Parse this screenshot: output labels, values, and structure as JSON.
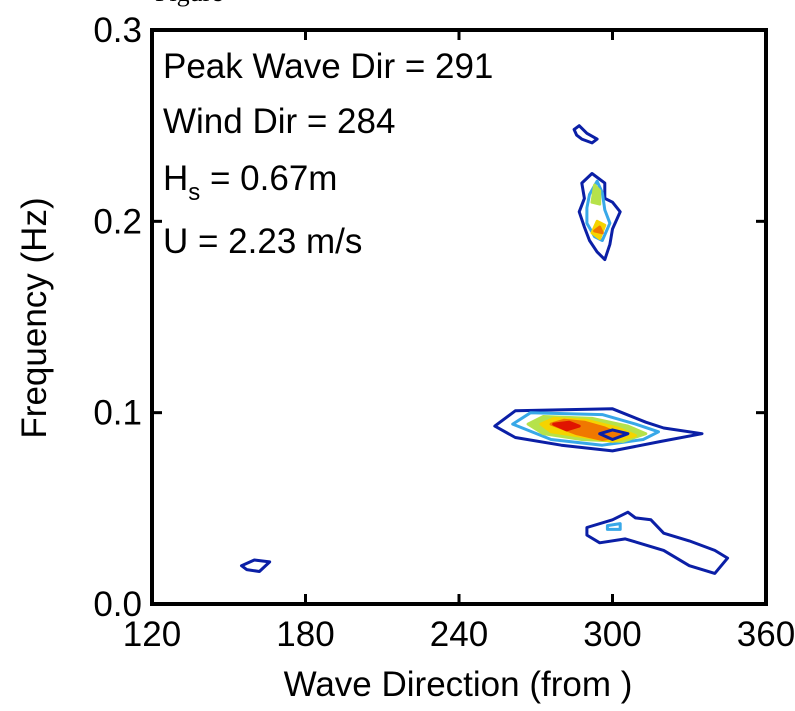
{
  "header_fragment": "Figure",
  "chart_data": {
    "type": "contour",
    "xlabel": "Wave Direction  (from )",
    "ylabel": "Frequency (Hz)",
    "xlim": [
      120,
      360
    ],
    "ylim": [
      0.0,
      0.3
    ],
    "x_ticks": [
      120,
      180,
      240,
      300,
      360
    ],
    "x_tick_labels": [
      "120",
      "180",
      "240",
      "300",
      "360"
    ],
    "y_ticks": [
      0.0,
      0.1,
      0.2,
      0.3
    ],
    "y_tick_labels": [
      "0.0",
      "0.1",
      "0.2",
      "0.3"
    ],
    "grid": false,
    "annotations": {
      "peak_wave_dir": "Peak Wave Dir = 291",
      "wind_dir": "Wind Dir = 284",
      "hs_prefix": "H",
      "hs_subscript": "s",
      "hs_value": " = 0.67m",
      "u": "U = 2.23 m/s"
    },
    "level_colors": [
      "#0b1fa6",
      "#38a8e8",
      "#b6e24a",
      "#f5d400",
      "#f07800",
      "#e01400"
    ],
    "features": [
      {
        "name": "swell-contour",
        "levels": [
          [
            [
              254,
              0.093
            ],
            [
              262,
              0.101
            ],
            [
              300,
              0.102
            ],
            [
              313,
              0.095
            ],
            [
              320,
              0.092
            ],
            [
              335,
              0.089
            ],
            [
              319,
              0.085
            ],
            [
              300,
              0.08
            ],
            [
              280,
              0.083
            ],
            [
              262,
              0.087
            ]
          ],
          [
            [
              261,
              0.094
            ],
            [
              268,
              0.1
            ],
            [
              296,
              0.099
            ],
            [
              309,
              0.094
            ],
            [
              318,
              0.09
            ],
            [
              312,
              0.086
            ],
            [
              296,
              0.083
            ],
            [
              276,
              0.086
            ]
          ],
          [
            [
              267,
              0.094
            ],
            [
              273,
              0.098
            ],
            [
              292,
              0.097
            ],
            [
              306,
              0.093
            ],
            [
              313,
              0.089
            ],
            [
              304,
              0.085
            ],
            [
              288,
              0.086
            ],
            [
              273,
              0.089
            ]
          ],
          [
            [
              272,
              0.094
            ],
            [
              277,
              0.097
            ],
            [
              290,
              0.096
            ],
            [
              302,
              0.092
            ],
            [
              309,
              0.088
            ],
            [
              300,
              0.085
            ],
            [
              286,
              0.088
            ],
            [
              276,
              0.09
            ]
          ],
          [
            [
              276,
              0.094
            ],
            [
              281,
              0.096
            ],
            [
              289,
              0.095
            ],
            [
              297,
              0.092
            ],
            [
              304,
              0.088
            ],
            [
              296,
              0.086
            ],
            [
              286,
              0.089
            ]
          ],
          [
            [
              277,
              0.094
            ],
            [
              283,
              0.095
            ],
            [
              287,
              0.093
            ],
            [
              282,
              0.091
            ]
          ]
        ]
      },
      {
        "name": "swell-contour-secondary-core",
        "levels": [
          [
            [
              295,
              0.089
            ],
            [
              300,
              0.091
            ],
            [
              306,
              0.089
            ],
            [
              300,
              0.086
            ]
          ]
        ]
      },
      {
        "name": "wind-sea-contour",
        "levels": [
          [
            [
              289,
              0.197
            ],
            [
              287,
              0.205
            ],
            [
              289,
              0.212
            ],
            [
              288,
              0.22
            ],
            [
              292,
              0.225
            ],
            [
              297,
              0.22
            ],
            [
              297,
              0.212
            ],
            [
              300,
              0.21
            ],
            [
              303,
              0.205
            ],
            [
              300,
              0.196
            ],
            [
              299,
              0.188
            ],
            [
              297,
              0.18
            ],
            [
              294,
              0.184
            ],
            [
              291,
              0.19
            ]
          ],
          [
            [
              290,
              0.199
            ],
            [
              290,
              0.207
            ],
            [
              291,
              0.214
            ],
            [
              294,
              0.221
            ],
            [
              296,
              0.215
            ],
            [
              297,
              0.206
            ],
            [
              299,
              0.199
            ],
            [
              296,
              0.19
            ],
            [
              293,
              0.192
            ]
          ],
          [
            [
              292,
              0.21
            ],
            [
              293,
              0.219
            ],
            [
              295,
              0.216
            ],
            [
              295,
              0.209
            ]
          ],
          [
            [
              292,
              0.194
            ],
            [
              294,
              0.2
            ],
            [
              297,
              0.198
            ],
            [
              295,
              0.191
            ]
          ],
          [
            [
              293,
              0.195
            ],
            [
              295,
              0.197
            ],
            [
              296,
              0.194
            ]
          ]
        ]
      },
      {
        "name": "upper-small-contour",
        "levels": [
          [
            [
              285,
              0.248
            ],
            [
              287,
              0.25
            ],
            [
              290,
              0.246
            ],
            [
              294,
              0.243
            ],
            [
              292,
              0.241
            ],
            [
              288,
              0.243
            ],
            [
              286,
              0.245
            ]
          ]
        ]
      },
      {
        "name": "low-frequency-contour",
        "levels": [
          [
            [
              290,
              0.04
            ],
            [
              300,
              0.044
            ],
            [
              306,
              0.048
            ],
            [
              309,
              0.045
            ],
            [
              315,
              0.044
            ],
            [
              320,
              0.037
            ],
            [
              330,
              0.033
            ],
            [
              340,
              0.028
            ],
            [
              345,
              0.024
            ],
            [
              340,
              0.016
            ],
            [
              330,
              0.02
            ],
            [
              320,
              0.028
            ],
            [
              305,
              0.034
            ],
            [
              295,
              0.032
            ],
            [
              290,
              0.036
            ]
          ],
          [
            [
              298,
              0.041
            ],
            [
              303,
              0.042
            ],
            [
              303,
              0.039
            ],
            [
              298,
              0.039
            ]
          ]
        ]
      },
      {
        "name": "isolated-contour",
        "levels": [
          [
            [
              155,
              0.02
            ],
            [
              160,
              0.023
            ],
            [
              166,
              0.022
            ],
            [
              162,
              0.017
            ],
            [
              157,
              0.018
            ]
          ]
        ]
      }
    ]
  }
}
